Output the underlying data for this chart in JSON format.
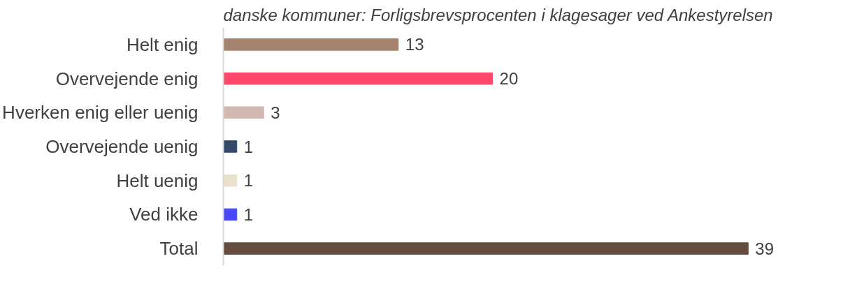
{
  "chart_data": {
    "type": "bar",
    "orientation": "horizontal",
    "title": "danske kommuner: Forligsbrevsprocenten i klagesager ved Ankestyrelsen",
    "categories": [
      "Helt enig",
      "Overvejende enig",
      "Hverken enig eller uenig",
      "Overvejende uenig",
      "Helt uenig",
      "Ved ikke",
      "Total"
    ],
    "values": [
      13,
      20,
      3,
      1,
      1,
      1,
      39
    ],
    "colors": [
      "#a5836e",
      "#ff476c",
      "#d2b8b0",
      "#344a6b",
      "#ebe0cc",
      "#4848ff",
      "#664c3f"
    ],
    "data_labels": true
  }
}
